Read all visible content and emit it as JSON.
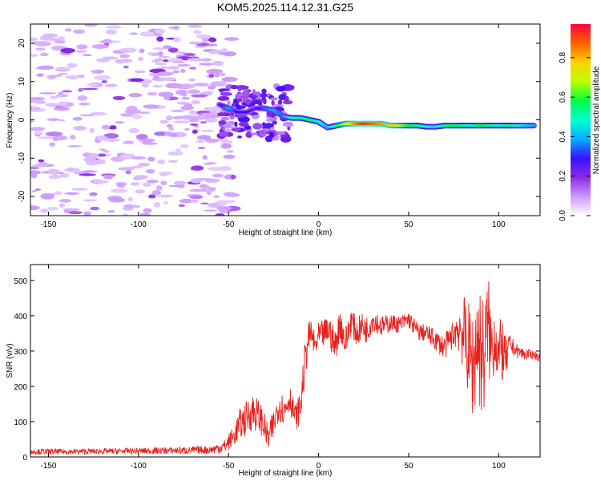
{
  "title": "KOM5.2025.114.12.31.G25",
  "colors": {
    "snr_line": "#e8221e",
    "frame": "#000000"
  },
  "chart_data": [
    {
      "type": "heatmap",
      "xlabel": "Height of straight line (km)",
      "ylabel": "Frequency (Hz)",
      "xlim": [
        -160,
        123
      ],
      "ylim": [
        -25,
        25
      ],
      "xticks": [
        -150,
        -100,
        -50,
        0,
        50,
        100
      ],
      "yticks": [
        -20,
        -10,
        0,
        10,
        20
      ],
      "colorbar": {
        "label": "Normalized spectral amplitude",
        "range": [
          0,
          0.97
        ],
        "ticks": [
          0.0,
          0.2,
          0.4,
          0.6,
          0.8
        ],
        "colors": [
          "#ffffff",
          "#cc99ff",
          "#8a2be2",
          "#3a10ff",
          "#00b0ff",
          "#00ffd0",
          "#00ff40",
          "#bfff00",
          "#ffd000",
          "#ff6000",
          "#ff0040"
        ]
      },
      "main_line": [
        {
          "x": -55,
          "y": 4,
          "v": 0.25
        },
        {
          "x": -50,
          "y": 3,
          "v": 0.4
        },
        {
          "x": -45,
          "y": 2,
          "v": 0.3
        },
        {
          "x": -40,
          "y": 2,
          "v": 0.3
        },
        {
          "x": -35,
          "y": 3,
          "v": 0.25
        },
        {
          "x": -30,
          "y": 3,
          "v": 0.35
        },
        {
          "x": -25,
          "y": 2.5,
          "v": 0.4
        },
        {
          "x": -20,
          "y": 1,
          "v": 0.35
        },
        {
          "x": -15,
          "y": 0.5,
          "v": 0.5
        },
        {
          "x": -10,
          "y": 0.5,
          "v": 0.55
        },
        {
          "x": -5,
          "y": 0,
          "v": 0.6
        },
        {
          "x": 0,
          "y": -0.5,
          "v": 0.5
        },
        {
          "x": 5,
          "y": -2,
          "v": 0.4
        },
        {
          "x": 10,
          "y": -1.5,
          "v": 0.55
        },
        {
          "x": 15,
          "y": -1,
          "v": 0.7
        },
        {
          "x": 20,
          "y": -1,
          "v": 0.85
        },
        {
          "x": 25,
          "y": -1,
          "v": 0.95
        },
        {
          "x": 30,
          "y": -1,
          "v": 0.9
        },
        {
          "x": 35,
          "y": -1,
          "v": 0.85
        },
        {
          "x": 40,
          "y": -1.5,
          "v": 0.8
        },
        {
          "x": 45,
          "y": -1.5,
          "v": 0.7
        },
        {
          "x": 50,
          "y": -1.5,
          "v": 0.6
        },
        {
          "x": 55,
          "y": -1.5,
          "v": 0.55
        },
        {
          "x": 60,
          "y": -1.8,
          "v": 0.5
        },
        {
          "x": 65,
          "y": -1.8,
          "v": 0.45
        },
        {
          "x": 70,
          "y": -1.5,
          "v": 0.55
        },
        {
          "x": 75,
          "y": -1.5,
          "v": 0.6
        },
        {
          "x": 80,
          "y": -1.5,
          "v": 0.55
        },
        {
          "x": 85,
          "y": -1.5,
          "v": 0.5
        },
        {
          "x": 90,
          "y": -1.5,
          "v": 0.6
        },
        {
          "x": 95,
          "y": -1.5,
          "v": 0.55
        },
        {
          "x": 100,
          "y": -1.5,
          "v": 0.5
        },
        {
          "x": 105,
          "y": -1.5,
          "v": 0.55
        },
        {
          "x": 110,
          "y": -1.5,
          "v": 0.5
        },
        {
          "x": 115,
          "y": -1.5,
          "v": 0.45
        },
        {
          "x": 120,
          "y": -1.5,
          "v": 0.4
        }
      ],
      "noise_region_x": [
        -160,
        -55
      ],
      "transition_region_x": [
        -55,
        -15
      ]
    },
    {
      "type": "line",
      "xlabel": "Height of straight line (km)",
      "ylabel": "SNR (v/v)",
      "xlim": [
        -160,
        123
      ],
      "ylim": [
        0,
        545
      ],
      "xticks": [
        -150,
        -100,
        -50,
        0,
        50,
        100
      ],
      "yticks": [
        0,
        100,
        200,
        300,
        400,
        500
      ],
      "series": [
        {
          "color": "#e8221e",
          "x": [
            -160,
            -140,
            -120,
            -100,
            -80,
            -60,
            -52,
            -47,
            -44,
            -40,
            -37,
            -34,
            -31,
            -28,
            -25,
            -22,
            -19,
            -16,
            -13,
            -10,
            -8,
            -6,
            -4,
            -2,
            0,
            3,
            6,
            9,
            12,
            15,
            18,
            21,
            24,
            27,
            30,
            35,
            40,
            45,
            50,
            55,
            60,
            65,
            70,
            75,
            78,
            80,
            82,
            84,
            86,
            88,
            90,
            92,
            94,
            96,
            98,
            100,
            102,
            104,
            106,
            110,
            115,
            120,
            123
          ],
          "y": [
            15,
            15,
            16,
            17,
            18,
            20,
            30,
            60,
            90,
            110,
            130,
            120,
            100,
            50,
            90,
            150,
            130,
            170,
            110,
            140,
            250,
            330,
            350,
            310,
            340,
            350,
            360,
            310,
            380,
            320,
            390,
            350,
            370,
            360,
            390,
            370,
            380,
            375,
            390,
            355,
            350,
            330,
            310,
            350,
            370,
            350,
            330,
            290,
            250,
            340,
            300,
            280,
            380,
            300,
            350,
            280,
            310,
            270,
            320,
            300,
            290,
            290,
            280
          ],
          "spread": [
            8,
            8,
            8,
            9,
            10,
            12,
            20,
            30,
            45,
            50,
            55,
            50,
            45,
            40,
            45,
            45,
            45,
            40,
            40,
            45,
            60,
            50,
            40,
            40,
            40,
            40,
            45,
            50,
            45,
            50,
            40,
            40,
            40,
            40,
            35,
            30,
            25,
            25,
            25,
            25,
            25,
            30,
            35,
            40,
            80,
            100,
            130,
            140,
            160,
            170,
            180,
            170,
            150,
            120,
            100,
            90,
            100,
            60,
            30,
            20,
            15,
            12,
            12
          ]
        }
      ]
    }
  ]
}
